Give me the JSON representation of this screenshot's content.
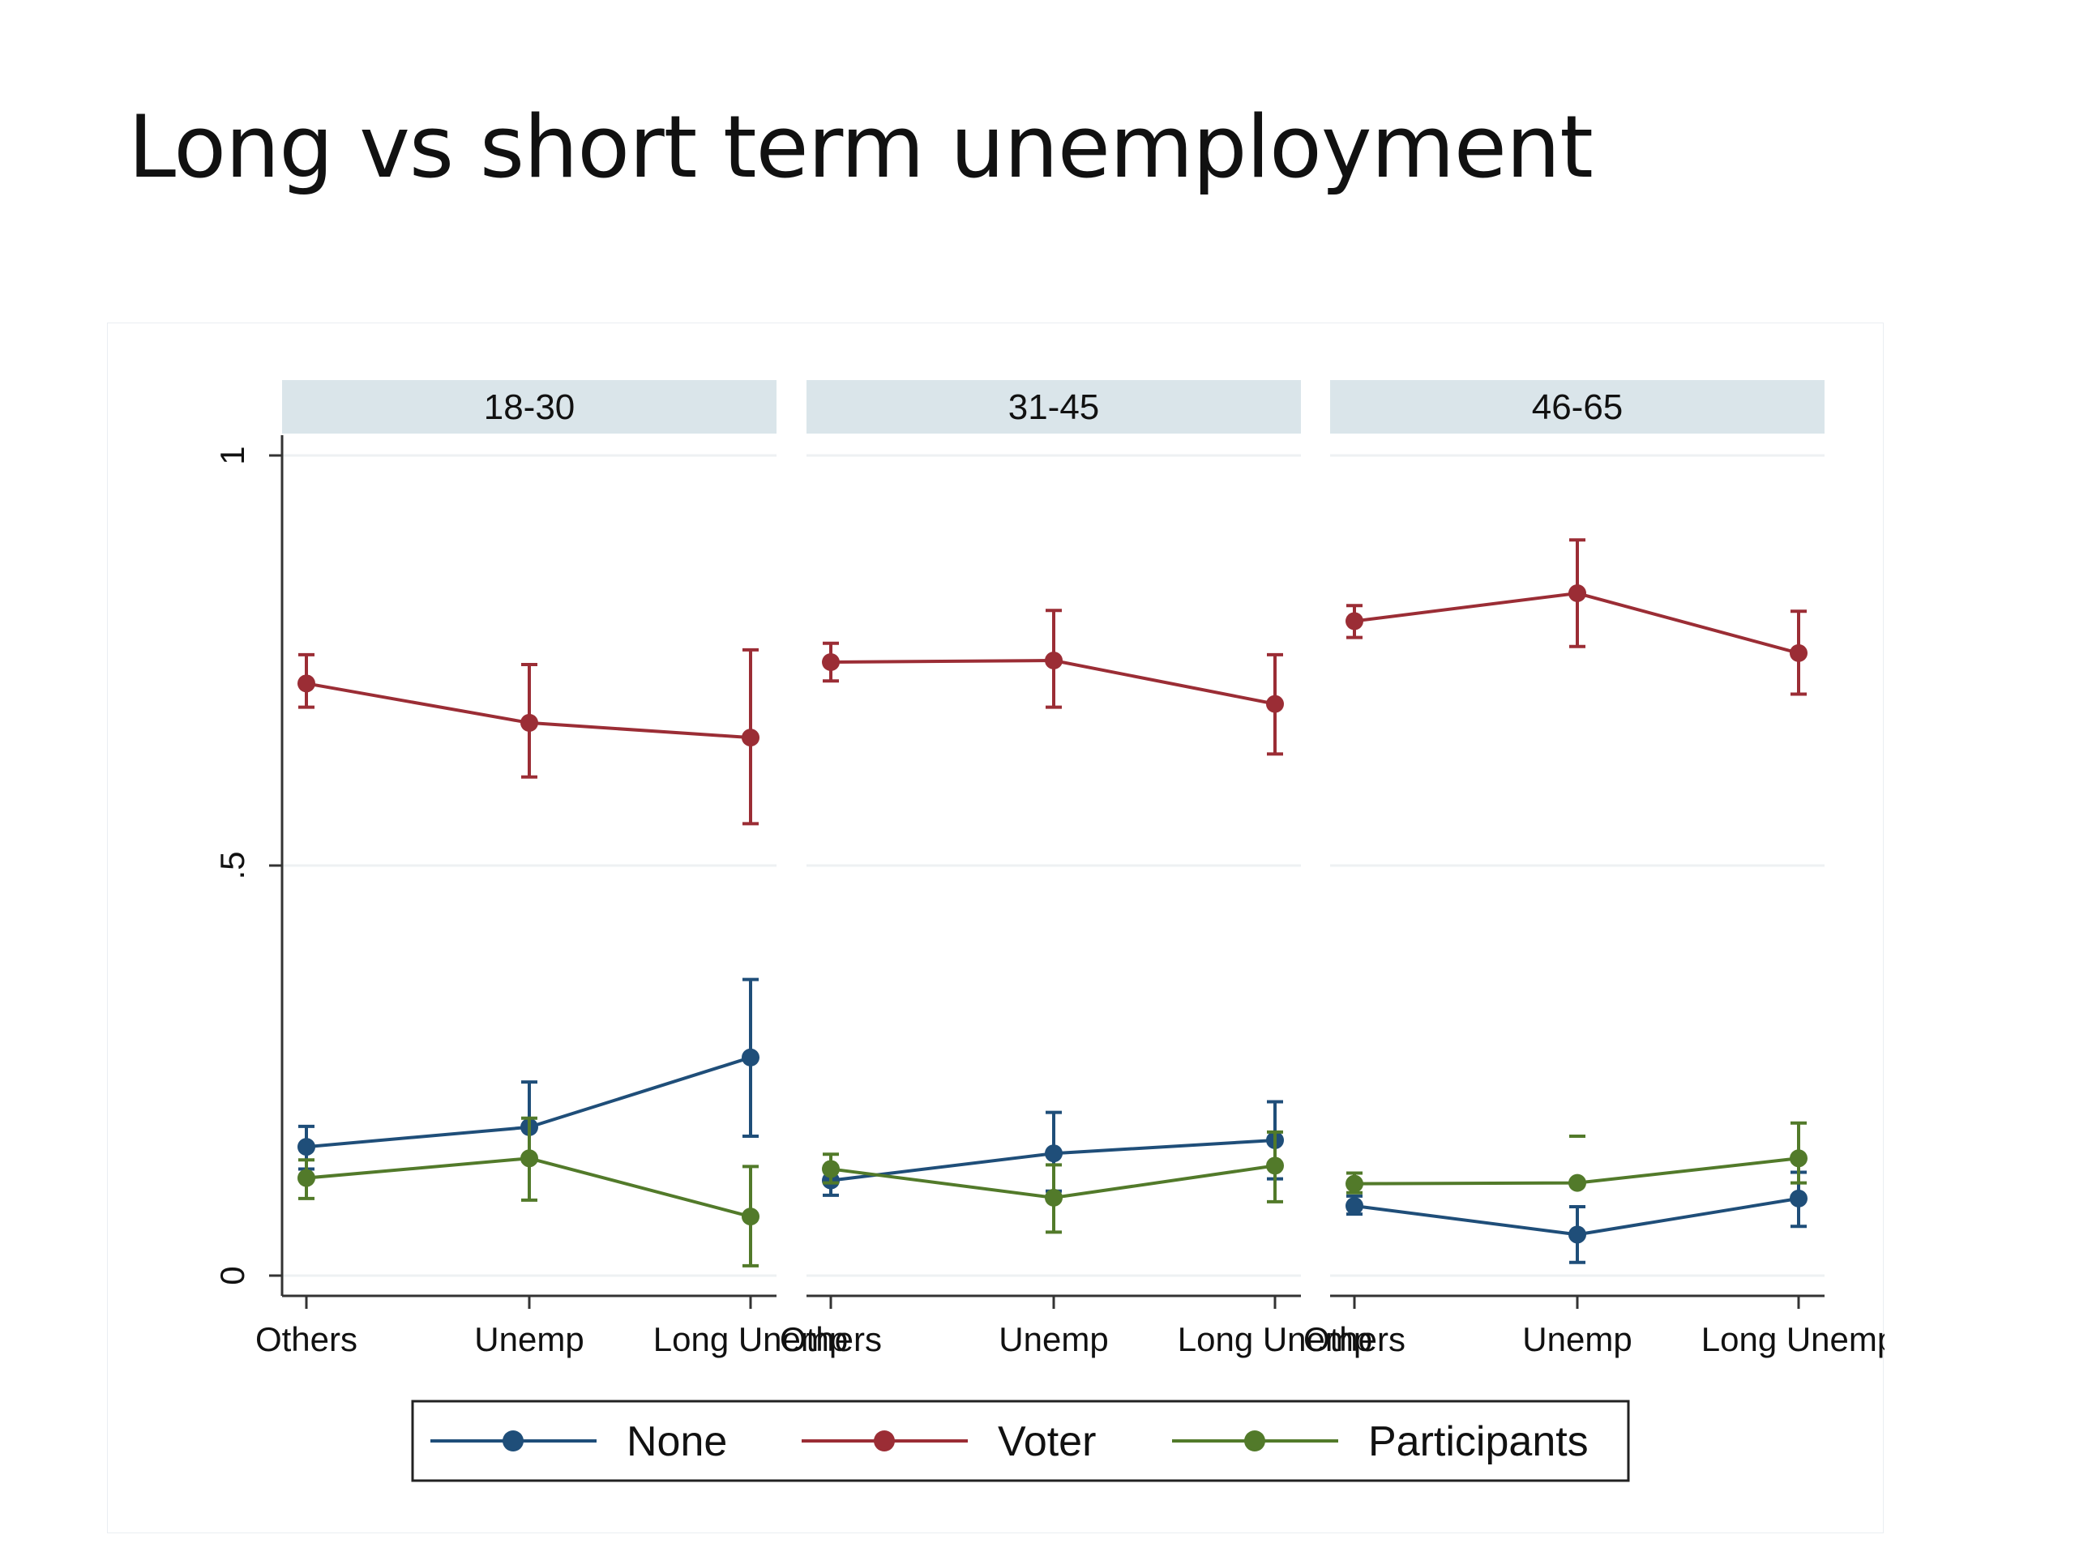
{
  "slide": {
    "title": "Long vs short term unemployment"
  },
  "chart_data": {
    "type": "line",
    "title": "",
    "xlabel": "",
    "ylabel": "",
    "ylim": [
      0,
      1
    ],
    "yticks": [
      {
        "value": 0,
        "label": "0"
      },
      {
        "value": 0.5,
        "label": ".5"
      },
      {
        "value": 1,
        "label": "1"
      }
    ],
    "grid": true,
    "legend_position": "bottom",
    "categories": [
      "Others",
      "Unemp",
      "Long Unemp"
    ],
    "panels": [
      {
        "label": "18-30",
        "tick_labels": [
          "Others",
          "Unemp",
          "Long Unemp"
        ],
        "series": [
          {
            "name": "None",
            "values": [
              0.157,
              0.181,
              0.266
            ],
            "lower": [
              0.13,
              0.14,
              0.17
            ],
            "upper": [
              0.182,
              0.236,
              0.361
            ]
          },
          {
            "name": "Voter",
            "values": [
              0.722,
              0.674,
              0.656
            ],
            "lower": [
              0.693,
              0.608,
              0.551
            ],
            "upper": [
              0.757,
              0.745,
              0.763
            ]
          },
          {
            "name": "Participants",
            "values": [
              0.119,
              0.143,
              0.072
            ],
            "lower": [
              0.094,
              0.092,
              0.012
            ],
            "upper": [
              0.141,
              0.192,
              0.133
            ]
          }
        ]
      },
      {
        "label": "31-45",
        "tick_labels": [
          "Others",
          "Unemp",
          "Long Unemp"
        ],
        "series": [
          {
            "name": "None",
            "values": [
              0.116,
              0.149,
              0.165
            ],
            "lower": [
              0.098,
              0.103,
              0.118
            ],
            "upper": [
              0.133,
              0.199,
              0.212
            ]
          },
          {
            "name": "Voter",
            "values": [
              0.748,
              0.75,
              0.697
            ],
            "lower": [
              0.725,
              0.693,
              0.636
            ],
            "upper": [
              0.771,
              0.811,
              0.757
            ]
          },
          {
            "name": "Participants",
            "values": [
              0.13,
              0.095,
              0.134
            ],
            "lower": [
              0.113,
              0.053,
              0.09
            ],
            "upper": [
              0.148,
              0.135,
              0.175
            ]
          }
        ]
      },
      {
        "label": "46-65",
        "tick_labels": [
          "Others",
          "Unemp",
          "Long Unemp"
        ],
        "series": [
          {
            "name": "None",
            "values": [
              0.085,
              0.05,
              0.094
            ],
            "lower": [
              0.075,
              0.016,
              0.06
            ],
            "upper": [
              0.097,
              0.084,
              0.126
            ]
          },
          {
            "name": "Voter",
            "values": [
              0.798,
              0.832,
              0.759
            ],
            "lower": [
              0.778,
              0.767,
              0.709
            ],
            "upper": [
              0.817,
              0.897,
              0.81
            ]
          },
          {
            "name": "Participants",
            "values": [
              0.112,
              0.113,
              0.143
            ],
            "lower": [
              0.101,
              0.17,
              0.113
            ],
            "upper": [
              0.125,
              0.17,
              0.186
            ]
          }
        ]
      }
    ],
    "legend": [
      {
        "name": "None",
        "color": "#1f4e79"
      },
      {
        "name": "Voter",
        "color": "#9b2d35"
      },
      {
        "name": "Participants",
        "color": "#527a2a"
      }
    ],
    "colors": {
      "None": "#1f4e79",
      "Voter": "#9b2d35",
      "Participants": "#527a2a",
      "strip": "#dae5ea"
    }
  }
}
